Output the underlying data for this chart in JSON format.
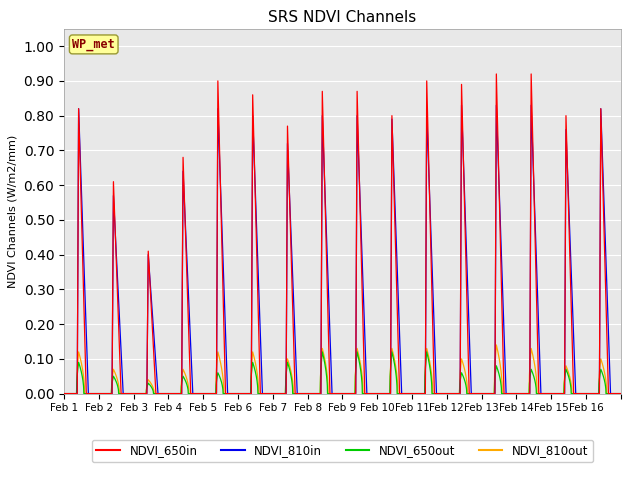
{
  "title": "SRS NDVI Channels",
  "ylabel": "NDVI Channels (W/m2/mm)",
  "ylim": [
    0.0,
    1.05
  ],
  "bg_color": "#e8e8e8",
  "annotation_text": "WP_met",
  "annotation_bg": "#ffff99",
  "annotation_border": "#999933",
  "annotation_text_color": "#880000",
  "legend_entries": [
    "NDVI_650in",
    "NDVI_810in",
    "NDVI_650out",
    "NDVI_810out"
  ],
  "line_colors": [
    "#ff0000",
    "#0000ee",
    "#00cc00",
    "#ffaa00"
  ],
  "xtick_labels": [
    "Feb 1",
    "Feb 2",
    "Feb 3",
    "Feb 4",
    "Feb 5",
    "Feb 6",
    "Feb 7",
    "Feb 8",
    "Feb 9",
    "Feb 10",
    "Feb 11",
    "Feb 12",
    "Feb 13",
    "Feb 14",
    "Feb 15",
    "Feb 16"
  ],
  "peak_650in": [
    0.82,
    0.61,
    0.41,
    0.68,
    0.9,
    0.86,
    0.77,
    0.87,
    0.87,
    0.8,
    0.9,
    0.89,
    0.92,
    0.92,
    0.8,
    0.82
  ],
  "peak_810in": [
    0.82,
    0.57,
    0.4,
    0.64,
    0.82,
    0.8,
    0.72,
    0.8,
    0.8,
    0.79,
    0.81,
    0.83,
    0.83,
    0.83,
    0.76,
    0.82
  ],
  "peak_650out": [
    0.09,
    0.05,
    0.03,
    0.05,
    0.06,
    0.09,
    0.09,
    0.12,
    0.12,
    0.12,
    0.12,
    0.06,
    0.08,
    0.07,
    0.07,
    0.07
  ],
  "peak_810out": [
    0.12,
    0.07,
    0.04,
    0.07,
    0.12,
    0.12,
    0.1,
    0.13,
    0.13,
    0.13,
    0.13,
    0.1,
    0.14,
    0.13,
    0.08,
    0.1
  ],
  "yticks": [
    0.0,
    0.1,
    0.2,
    0.3,
    0.4,
    0.5,
    0.6,
    0.7,
    0.8,
    0.9,
    1.0
  ],
  "n_days": 16,
  "pts_per_day": 200
}
